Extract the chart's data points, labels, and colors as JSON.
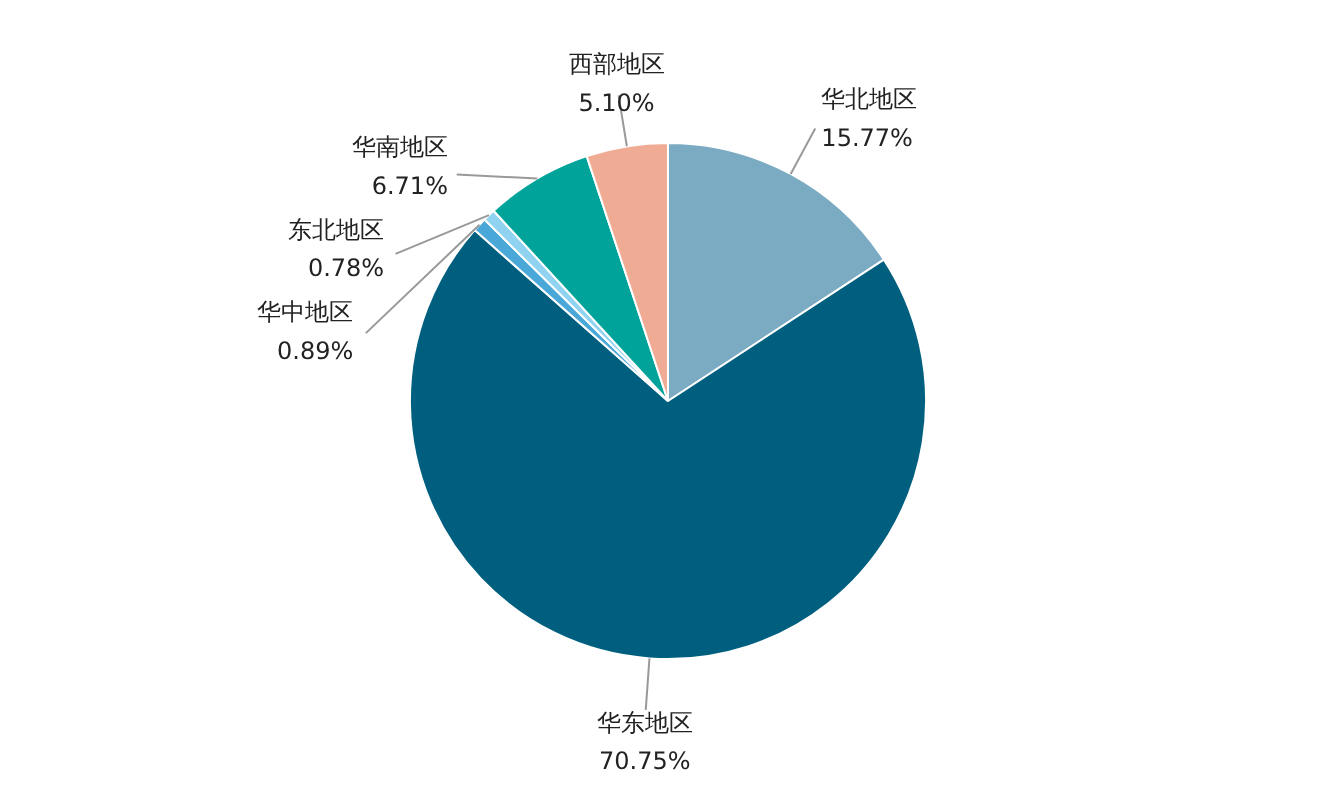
{
  "chart_data": {
    "type": "pie",
    "categories": [
      "华北地区",
      "华东地区",
      "华中地区",
      "东北地区",
      "华南地区",
      "西部地区"
    ],
    "values": [
      15.77,
      70.75,
      0.89,
      0.78,
      6.71,
      5.1
    ],
    "value_labels": [
      "15.77%",
      "70.75%",
      "0.89%",
      "0.78%",
      "6.71%",
      "5.10%"
    ],
    "colors": [
      "#7aabc2",
      "#005f7f",
      "#4aa8d8",
      "#8fd3f0",
      "#00a39a",
      "#f0ab94"
    ]
  }
}
